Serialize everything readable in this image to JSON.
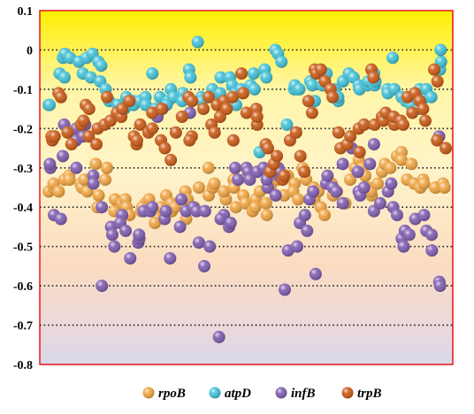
{
  "chart_data": {
    "type": "scatter",
    "title": "",
    "xlabel": "",
    "ylabel": "",
    "ylim": [
      -0.8,
      0.1
    ],
    "yticks": [
      0.1,
      0,
      -0.1,
      -0.2,
      -0.3,
      -0.4,
      -0.5,
      -0.6,
      -0.7,
      -0.8
    ],
    "ytick_labels": [
      "0.1",
      "0",
      "-0.1",
      "-0.2",
      "-0.3",
      "-0.4",
      "-0.5",
      "-0.6",
      "-0.7",
      "-0.8"
    ],
    "grid": "dotted horizontal",
    "legend_position": "bottom",
    "plot_background": "vertical gradient from yellow at top to light lavender at bottom",
    "plot_border_color": "#e8151b",
    "series": [
      {
        "name": "rpoB",
        "color": "#f0a23c",
        "values": [
          -0.36,
          -0.35,
          -0.34,
          -0.36,
          -0.33,
          -0.32,
          -0.33,
          -0.34,
          -0.35,
          -0.33,
          -0.36,
          -0.29,
          -0.37,
          -0.4,
          -0.33,
          -0.3,
          -0.38,
          -0.41,
          -0.39,
          -0.38,
          -0.4,
          -0.42,
          -0.41,
          -0.39,
          -0.4,
          -0.38,
          -0.43,
          -0.44,
          -0.4,
          -0.37,
          -0.39,
          -0.41,
          -0.4,
          -0.43,
          -0.36,
          -0.38,
          -0.4,
          -0.41,
          -0.35,
          -0.3,
          -0.37,
          -0.35,
          -0.34,
          -0.38,
          -0.36,
          -0.33,
          -0.35,
          -0.4,
          -0.37,
          -0.39,
          -0.41,
          -0.38,
          -0.4,
          -0.36,
          -0.39,
          -0.42,
          -0.35,
          -0.33,
          -0.37,
          -0.32,
          -0.34,
          -0.36,
          -0.38,
          -0.3,
          -0.33,
          -0.35,
          -0.38,
          -0.36,
          -0.4,
          -0.42,
          -0.37,
          -0.34,
          -0.36,
          -0.39,
          -0.33,
          -0.3,
          -0.28,
          -0.3,
          -0.32,
          -0.35,
          -0.37,
          -0.36,
          -0.34,
          -0.31,
          -0.29,
          -0.3,
          -0.27,
          -0.26,
          -0.28,
          -0.29,
          -0.33,
          -0.34,
          -0.35,
          -0.33,
          -0.34,
          -0.35,
          -0.35,
          -0.34,
          -0.35
        ]
      },
      {
        "name": "atpD",
        "color": "#3dbfd6",
        "values": [
          -0.14,
          -0.14,
          -0.06,
          -0.07,
          -0.02,
          -0.01,
          -0.02,
          -0.03,
          -0.06,
          -0.02,
          -0.01,
          -0.07,
          -0.08,
          -0.03,
          -0.04,
          -0.1,
          -0.13,
          -0.14,
          -0.15,
          -0.14,
          -0.12,
          -0.13,
          -0.14,
          -0.13,
          -0.12,
          -0.14,
          -0.06,
          -0.15,
          -0.12,
          -0.13,
          -0.14,
          -0.1,
          -0.12,
          -0.11,
          -0.13,
          -0.05,
          -0.07,
          0.02,
          -0.12,
          -0.13,
          -0.1,
          -0.12,
          -0.11,
          -0.07,
          -0.07,
          -0.09,
          -0.11,
          -0.14,
          -0.1,
          -0.11,
          -0.06,
          -0.09,
          -0.1,
          -0.26,
          -0.05,
          -0.07,
          0,
          -0.01,
          -0.03,
          -0.19,
          -0.1,
          -0.09,
          -0.1,
          -0.1,
          -0.08,
          -0.09,
          -0.13,
          -0.09,
          -0.07,
          -0.06,
          -0.1,
          -0.13,
          -0.12,
          -0.08,
          -0.06,
          -0.07,
          -0.09,
          -0.1,
          -0.09,
          -0.08,
          -0.06,
          -0.09,
          -0.08,
          -0.1,
          -0.11,
          -0.02,
          -0.1,
          -0.12,
          -0.13,
          -0.12,
          -0.14,
          -0.15,
          -0.13,
          -0.1,
          -0.1,
          -0.12,
          -0.05,
          -0.03,
          0
        ]
      },
      {
        "name": "infB",
        "color": "#7b58ad",
        "values": [
          -0.3,
          -0.29,
          -0.42,
          -0.43,
          -0.27,
          -0.19,
          -0.2,
          -0.3,
          -0.23,
          -0.22,
          -0.19,
          -0.32,
          -0.34,
          -0.4,
          -0.6,
          -0.45,
          -0.47,
          -0.5,
          -0.42,
          -0.44,
          -0.46,
          -0.53,
          -0.49,
          -0.48,
          -0.47,
          -0.41,
          -0.41,
          -0.4,
          -0.17,
          -0.15,
          -0.43,
          -0.41,
          -0.53,
          -0.45,
          -0.38,
          -0.41,
          -0.4,
          -0.16,
          -0.41,
          -0.49,
          -0.55,
          -0.41,
          -0.5,
          -0.73,
          -0.42,
          -0.43,
          -0.45,
          -0.44,
          -0.3,
          -0.33,
          -0.3,
          -0.31,
          -0.33,
          -0.31,
          -0.3,
          -0.35,
          -0.33,
          -0.37,
          -0.3,
          -0.32,
          -0.31,
          -0.61,
          -0.51,
          -0.5,
          -0.44,
          -0.46,
          -0.42,
          -0.38,
          -0.36,
          -0.57,
          -0.34,
          -0.32,
          -0.35,
          -0.36,
          -0.36,
          -0.39,
          -0.29,
          -0.25,
          -0.31,
          -0.36,
          -0.37,
          -0.35,
          -0.29,
          -0.24,
          -0.41,
          -0.39,
          -0.36,
          -0.34,
          -0.4,
          -0.42,
          -0.48,
          -0.5,
          -0.46,
          -0.47,
          -0.43,
          -0.42,
          -0.46,
          -0.51,
          -0.47,
          -0.22,
          -0.59,
          -0.6
        ]
      },
      {
        "name": "trpB",
        "color": "#c8550f",
        "values": [
          -0.23,
          -0.22,
          -0.22,
          -0.11,
          -0.12,
          -0.21,
          -0.24,
          -0.19,
          -0.18,
          -0.14,
          -0.15,
          -0.22,
          -0.24,
          -0.2,
          -0.19,
          -0.12,
          -0.18,
          -0.16,
          -0.17,
          -0.15,
          -0.13,
          -0.22,
          -0.24,
          -0.23,
          -0.19,
          -0.21,
          -0.16,
          -0.2,
          -0.15,
          -0.23,
          -0.25,
          -0.28,
          -0.21,
          -0.17,
          -0.12,
          -0.22,
          -0.23,
          -0.13,
          -0.15,
          -0.12,
          -0.19,
          -0.21,
          -0.14,
          -0.13,
          -0.17,
          -0.15,
          -0.23,
          -0.12,
          -0.06,
          -0.11,
          -0.16,
          -0.15,
          -0.19,
          -0.17,
          -0.24,
          -0.31,
          -0.25,
          -0.29,
          -0.27,
          -0.33,
          -0.32,
          -0.23,
          -0.21,
          -0.27,
          -0.31,
          -0.16,
          -0.13,
          -0.05,
          -0.06,
          -0.05,
          -0.08,
          -0.1,
          -0.12,
          -0.21,
          -0.25,
          -0.24,
          -0.22,
          -0.2,
          -0.26,
          -0.19,
          -0.05,
          -0.07,
          -0.19,
          -0.17,
          -0.18,
          -0.16,
          -0.19,
          -0.17,
          -0.18,
          -0.19,
          -0.12,
          -0.11,
          -0.16,
          -0.13,
          -0.15,
          -0.18,
          -0.05,
          -0.08,
          -0.23,
          -0.25
        ]
      }
    ]
  }
}
